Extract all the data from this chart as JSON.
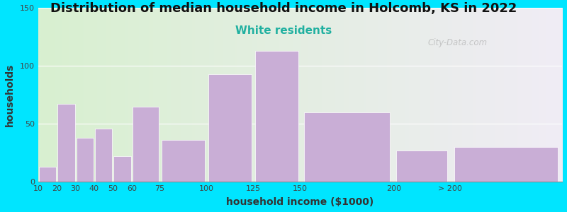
{
  "title": "Distribution of median household income in Holcomb, KS in 2022",
  "subtitle": "White residents",
  "xlabel": "household income ($1000)",
  "ylabel": "households",
  "bar_color": "#c9aed6",
  "background_outer": "#00e5ff",
  "background_inner_left": "#d8f0d0",
  "background_inner_right": "#f0ecf5",
  "categories": [
    "10",
    "20",
    "30",
    "40",
    "50",
    "60",
    "75",
    "100",
    "125",
    "150",
    "200",
    "> 200"
  ],
  "bar_lefts": [
    10,
    20,
    30,
    40,
    50,
    60,
    75,
    100,
    125,
    150,
    200,
    230
  ],
  "bar_widths": [
    10,
    10,
    10,
    10,
    10,
    15,
    25,
    25,
    25,
    50,
    30,
    60
  ],
  "values": [
    13,
    67,
    38,
    46,
    22,
    65,
    36,
    93,
    113,
    60,
    27,
    30
  ],
  "ylim": [
    0,
    150
  ],
  "yticks": [
    0,
    50,
    100,
    150
  ],
  "xlim_left": 10,
  "xlim_right": 290,
  "xtick_positions": [
    10,
    20,
    30,
    40,
    50,
    60,
    75,
    100,
    125,
    150,
    200,
    230
  ],
  "xtick_labels": [
    "10",
    "20",
    "30",
    "40",
    "50",
    "60",
    "75",
    "100",
    "125",
    "150",
    "200",
    "> 200"
  ],
  "title_fontsize": 13,
  "subtitle_fontsize": 11,
  "subtitle_color": "#20b0a0",
  "axis_label_fontsize": 10,
  "tick_fontsize": 8,
  "watermark_text": "City-Data.com",
  "watermark_color": "#aaaaaa",
  "watermark_alpha": 0.6
}
